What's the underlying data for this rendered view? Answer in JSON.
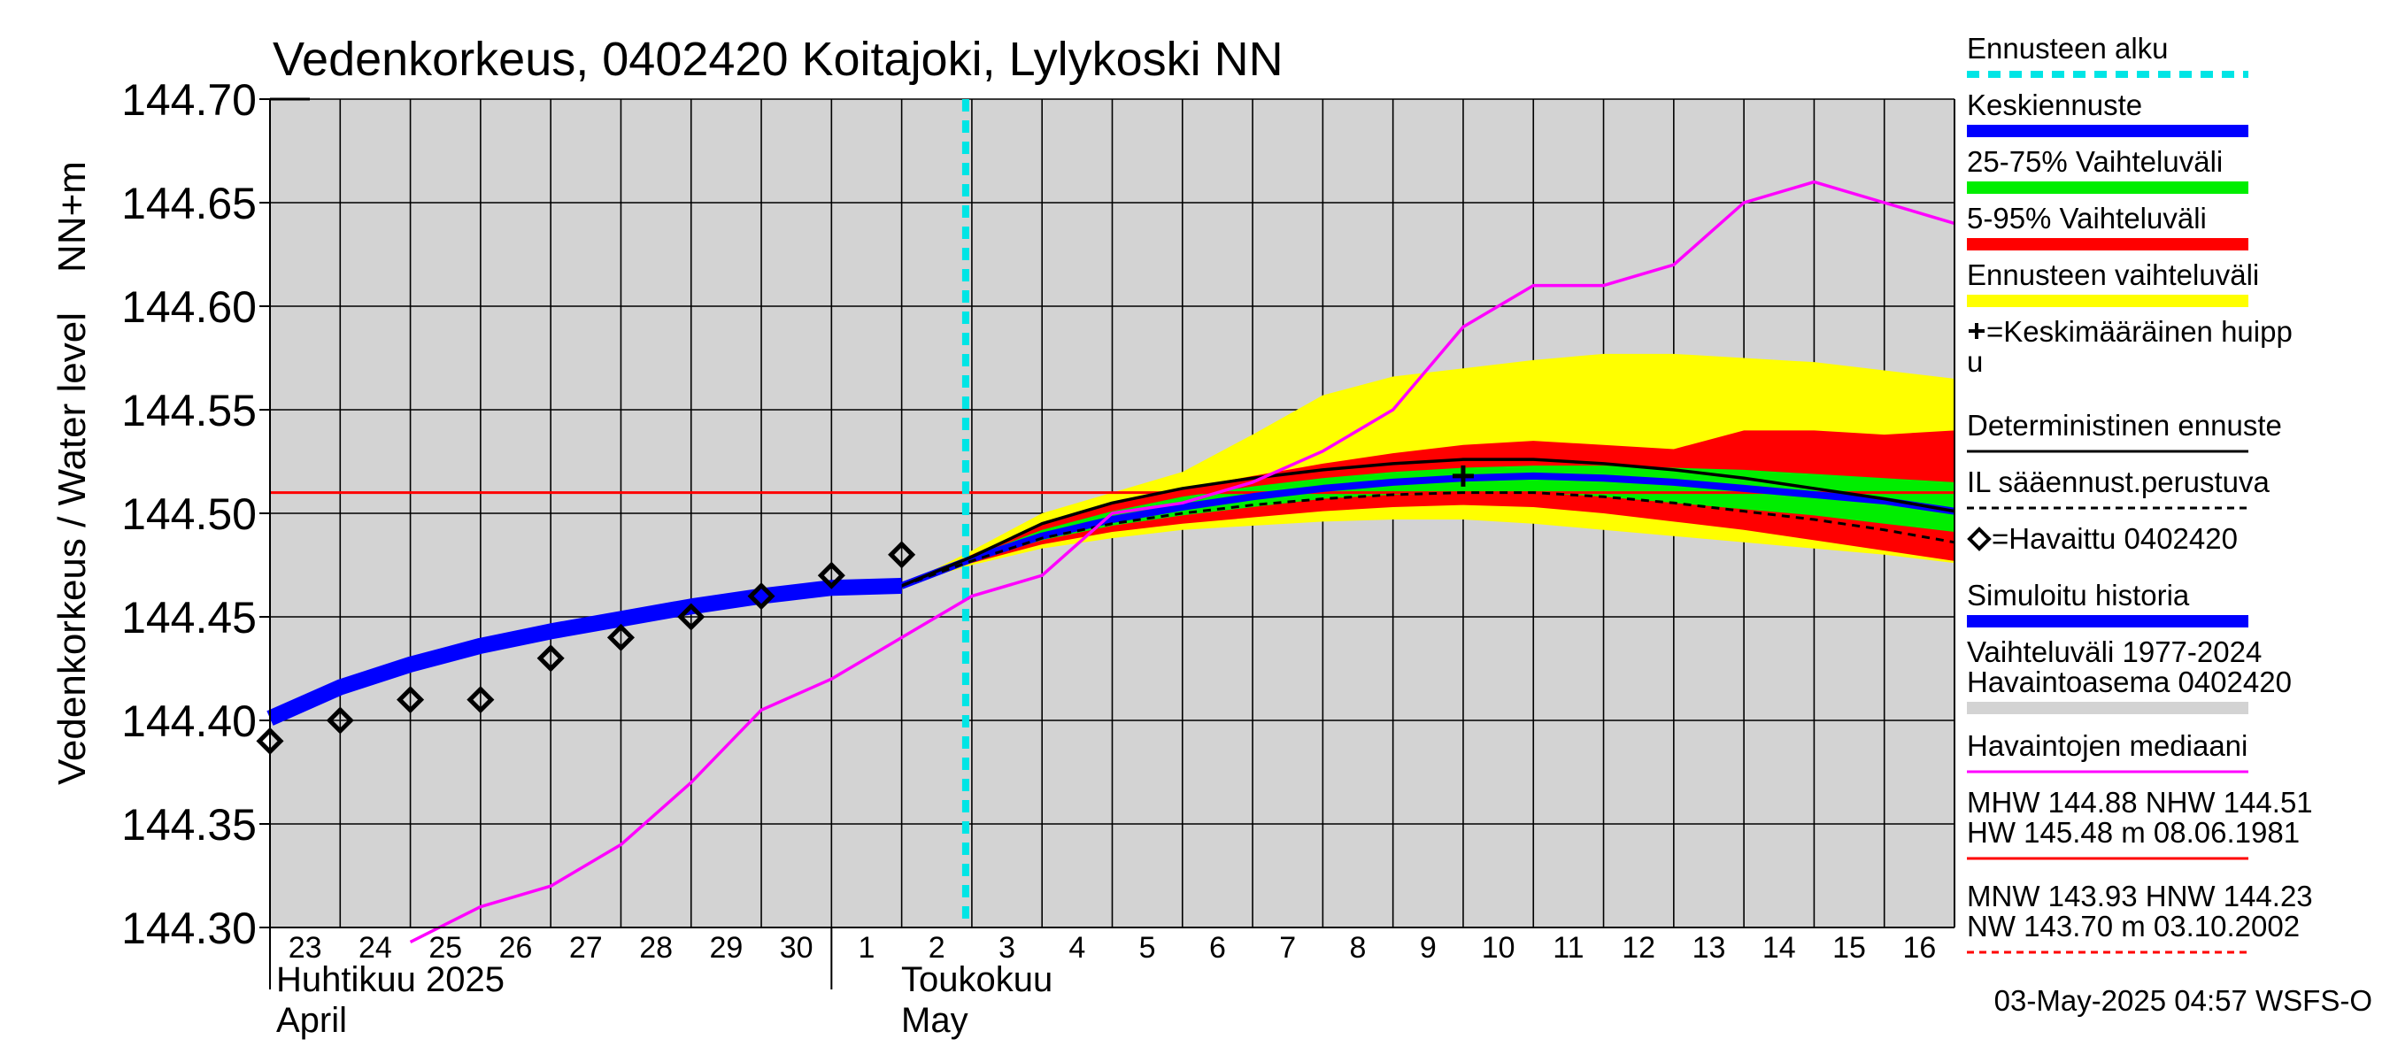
{
  "chart_data": {
    "type": "line",
    "title": "Vedenkorkeus, 0402420 Koitajoki, Lylykoski NN",
    "ylabel": "Vedenkorkeus / Water level",
    "yunit": "NN+m",
    "ylim": [
      144.3,
      144.7
    ],
    "yticks": [
      "144.30",
      "144.35",
      "144.40",
      "144.45",
      "144.50",
      "144.55",
      "144.60",
      "144.65",
      "144.70"
    ],
    "xlim": [
      "2025-04-23",
      "2025-05-17"
    ],
    "xtick_labels": [
      "23",
      "24",
      "25",
      "26",
      "27",
      "28",
      "29",
      "30",
      "1",
      "2",
      "3",
      "4",
      "5",
      "6",
      "7",
      "8",
      "9",
      "10",
      "11",
      "12",
      "13",
      "14",
      "15",
      "16"
    ],
    "months": [
      {
        "fi": "Huhtikuu  2025",
        "en": "April"
      },
      {
        "fi": "Toukokuu",
        "en": "May"
      }
    ],
    "forecast_start": "2025-05-03",
    "reference_line": {
      "value": 144.51,
      "label": "NHW 144.51",
      "color": "#ff0000"
    },
    "series": [
      {
        "name": "Ennusteen vaihteluväli",
        "kind": "band",
        "color": "#ffff00",
        "x": [
          "2025-05-02",
          "2025-05-03",
          "2025-05-04",
          "2025-05-05",
          "2025-05-06",
          "2025-05-07",
          "2025-05-08",
          "2025-05-09",
          "2025-05-10",
          "2025-05-11",
          "2025-05-12",
          "2025-05-13",
          "2025-05-14",
          "2025-05-15",
          "2025-05-16",
          "2025-05-17"
        ],
        "low": [
          144.465,
          144.475,
          144.483,
          144.488,
          144.492,
          144.494,
          144.496,
          144.497,
          144.497,
          144.495,
          144.492,
          144.489,
          144.486,
          144.483,
          144.48,
          144.476
        ],
        "high": [
          144.465,
          144.482,
          144.5,
          144.51,
          144.52,
          144.538,
          144.557,
          144.566,
          144.57,
          144.574,
          144.577,
          144.577,
          144.575,
          144.573,
          144.569,
          144.565
        ]
      },
      {
        "name": "5-95% Vaihteluväli",
        "kind": "band",
        "color": "#ff0000",
        "x": [
          "2025-05-02",
          "2025-05-03",
          "2025-05-04",
          "2025-05-05",
          "2025-05-06",
          "2025-05-07",
          "2025-05-08",
          "2025-05-09",
          "2025-05-10",
          "2025-05-11",
          "2025-05-12",
          "2025-05-13",
          "2025-05-14",
          "2025-05-15",
          "2025-05-16",
          "2025-05-17"
        ],
        "low": [
          144.465,
          144.476,
          144.485,
          144.491,
          144.495,
          144.498,
          144.501,
          144.503,
          144.504,
          144.503,
          144.5,
          144.496,
          144.492,
          144.487,
          144.482,
          144.477
        ],
        "high": [
          144.465,
          144.48,
          144.495,
          144.505,
          144.512,
          144.518,
          144.524,
          144.529,
          144.533,
          144.535,
          144.533,
          144.531,
          144.54,
          144.54,
          144.538,
          144.54
        ]
      },
      {
        "name": "25-75% Vaihteluväli",
        "kind": "band",
        "color": "#00ee00",
        "x": [
          "2025-05-02",
          "2025-05-03",
          "2025-05-04",
          "2025-05-05",
          "2025-05-06",
          "2025-05-07",
          "2025-05-08",
          "2025-05-09",
          "2025-05-10",
          "2025-05-11",
          "2025-05-12",
          "2025-05-13",
          "2025-05-14",
          "2025-05-15",
          "2025-05-16",
          "2025-05-17"
        ],
        "low": [
          144.465,
          144.477,
          144.487,
          144.494,
          144.499,
          144.503,
          144.507,
          144.509,
          144.51,
          144.51,
          144.508,
          144.505,
          144.502,
          144.499,
          144.495,
          144.491
        ],
        "high": [
          144.465,
          144.479,
          144.492,
          144.501,
          144.508,
          144.513,
          144.517,
          144.52,
          144.522,
          144.523,
          144.523,
          144.522,
          144.521,
          144.519,
          144.517,
          144.515
        ]
      },
      {
        "name": "Keskiennuste",
        "kind": "line",
        "color": "#0000ff",
        "x": [
          "2025-05-02",
          "2025-05-03",
          "2025-05-04",
          "2025-05-05",
          "2025-05-06",
          "2025-05-07",
          "2025-05-08",
          "2025-05-09",
          "2025-05-10",
          "2025-05-11",
          "2025-05-12",
          "2025-05-13",
          "2025-05-14",
          "2025-05-15",
          "2025-05-16",
          "2025-05-17"
        ],
        "y": [
          144.465,
          144.478,
          144.489,
          144.497,
          144.503,
          144.508,
          144.512,
          144.515,
          144.517,
          144.518,
          144.517,
          144.515,
          144.512,
          144.509,
          144.506,
          144.501
        ]
      },
      {
        "name": "Deterministinen ennuste",
        "kind": "line",
        "color": "#000000",
        "x": [
          "2025-05-02",
          "2025-05-03",
          "2025-05-04",
          "2025-05-05",
          "2025-05-06",
          "2025-05-07",
          "2025-05-08",
          "2025-05-09",
          "2025-05-10",
          "2025-05-11",
          "2025-05-12",
          "2025-05-13",
          "2025-05-14",
          "2025-05-15",
          "2025-05-16",
          "2025-05-17"
        ],
        "y": [
          144.465,
          144.479,
          144.495,
          144.505,
          144.512,
          144.517,
          144.521,
          144.524,
          144.526,
          144.526,
          144.524,
          144.521,
          144.517,
          144.512,
          144.507,
          144.501
        ]
      },
      {
        "name": "IL sääennust.perustuva",
        "kind": "dashed",
        "color": "#000000",
        "x": [
          "2025-05-02",
          "2025-05-03",
          "2025-05-04",
          "2025-05-05",
          "2025-05-06",
          "2025-05-07",
          "2025-05-08",
          "2025-05-09",
          "2025-05-10",
          "2025-05-11",
          "2025-05-12",
          "2025-05-13",
          "2025-05-14",
          "2025-05-15",
          "2025-05-16",
          "2025-05-17"
        ],
        "y": [
          144.465,
          144.477,
          144.488,
          144.495,
          144.5,
          144.504,
          144.507,
          144.509,
          144.51,
          144.51,
          144.508,
          144.505,
          144.501,
          144.497,
          144.492,
          144.486
        ]
      },
      {
        "name": "Simuloitu historia",
        "kind": "thick",
        "color": "#0000ff",
        "x": [
          "2025-04-23",
          "2025-04-24",
          "2025-04-25",
          "2025-04-26",
          "2025-04-27",
          "2025-04-28",
          "2025-04-29",
          "2025-04-30",
          "2025-05-01",
          "2025-05-02"
        ],
        "y": [
          144.401,
          144.416,
          144.427,
          144.436,
          144.443,
          144.449,
          144.455,
          144.46,
          144.464,
          144.465
        ]
      },
      {
        "name": "Havaintojen mediaani",
        "kind": "line",
        "color": "#ff00ff",
        "x": [
          "2025-04-25",
          "2025-04-26",
          "2025-04-27",
          "2025-04-28",
          "2025-04-29",
          "2025-04-30",
          "2025-05-01",
          "2025-05-02",
          "2025-05-03",
          "2025-05-04",
          "2025-05-05",
          "2025-05-06",
          "2025-05-07",
          "2025-05-08",
          "2025-05-09",
          "2025-05-10",
          "2025-05-11",
          "2025-05-12",
          "2025-05-13",
          "2025-05-14",
          "2025-05-15",
          "2025-05-16",
          "2025-05-17"
        ],
        "y": [
          144.293,
          144.31,
          144.32,
          144.34,
          144.37,
          144.405,
          144.42,
          144.44,
          144.46,
          144.47,
          144.5,
          144.505,
          144.515,
          144.53,
          144.55,
          144.59,
          144.61,
          144.61,
          144.62,
          144.65,
          144.66,
          144.65,
          144.64
        ]
      },
      {
        "name": "=Havaittu 0402420",
        "kind": "markers",
        "color": "#000000",
        "x": [
          "2025-04-23",
          "2025-04-24",
          "2025-04-25",
          "2025-04-26",
          "2025-04-27",
          "2025-04-28",
          "2025-04-29",
          "2025-04-30",
          "2025-05-01",
          "2025-05-02"
        ],
        "y": [
          144.39,
          144.4,
          144.41,
          144.41,
          144.43,
          144.44,
          144.45,
          144.46,
          144.47,
          144.48
        ]
      }
    ],
    "mean_peak": {
      "x": "2025-05-10",
      "y": 144.518
    },
    "legend": {
      "placement": "right",
      "items": [
        {
          "label": "Ennusteen alku",
          "swatch": "dash-cyan",
          "color": "#00e5e5"
        },
        {
          "label": "Keskiennuste",
          "swatch": "bar",
          "color": "#0000ff"
        },
        {
          "label": "25-75% Vaihteluväli",
          "swatch": "bar",
          "color": "#00ee00"
        },
        {
          "label": "5-95% Vaihteluväli",
          "swatch": "bar",
          "color": "#ff0000"
        },
        {
          "label": "Ennusteen vaihteluväli",
          "swatch": "bar",
          "color": "#ffff00"
        },
        {
          "label": "=Keskimääräinen huipp",
          "label2": "u",
          "swatch": "plus",
          "color": "#000000"
        },
        {
          "label": "Deterministinen ennuste",
          "swatch": "line",
          "color": "#000000"
        },
        {
          "label": "IL sääennust.perustuva",
          "swatch": "dashed",
          "color": "#000000"
        },
        {
          "label": "=Havaittu 0402420",
          "swatch": "diamond",
          "color": "#000000"
        },
        {
          "label": "Simuloitu historia",
          "swatch": "bar",
          "color": "#0000ff"
        },
        {
          "label": "Vaihteluväli 1977-2024",
          "label2": " Havaintoasema 0402420",
          "swatch": "bar",
          "color": "#d3d3d3"
        },
        {
          "label": "Havaintojen mediaani",
          "swatch": "line",
          "color": "#ff00ff"
        },
        {
          "label": "MHW 144.88 NHW 144.51",
          "label2": "HW 145.48 m 08.06.1981",
          "swatch": "line",
          "color": "#ff0000"
        },
        {
          "label": "MNW 143.93 HNW 144.23",
          "label2": "NW 143.70 m 03.10.2002",
          "swatch": "dashed",
          "color": "#ff0000"
        }
      ]
    },
    "plot_background": "#d3d3d3",
    "grid": true
  },
  "footer": "03-May-2025 04:57 WSFS-O"
}
